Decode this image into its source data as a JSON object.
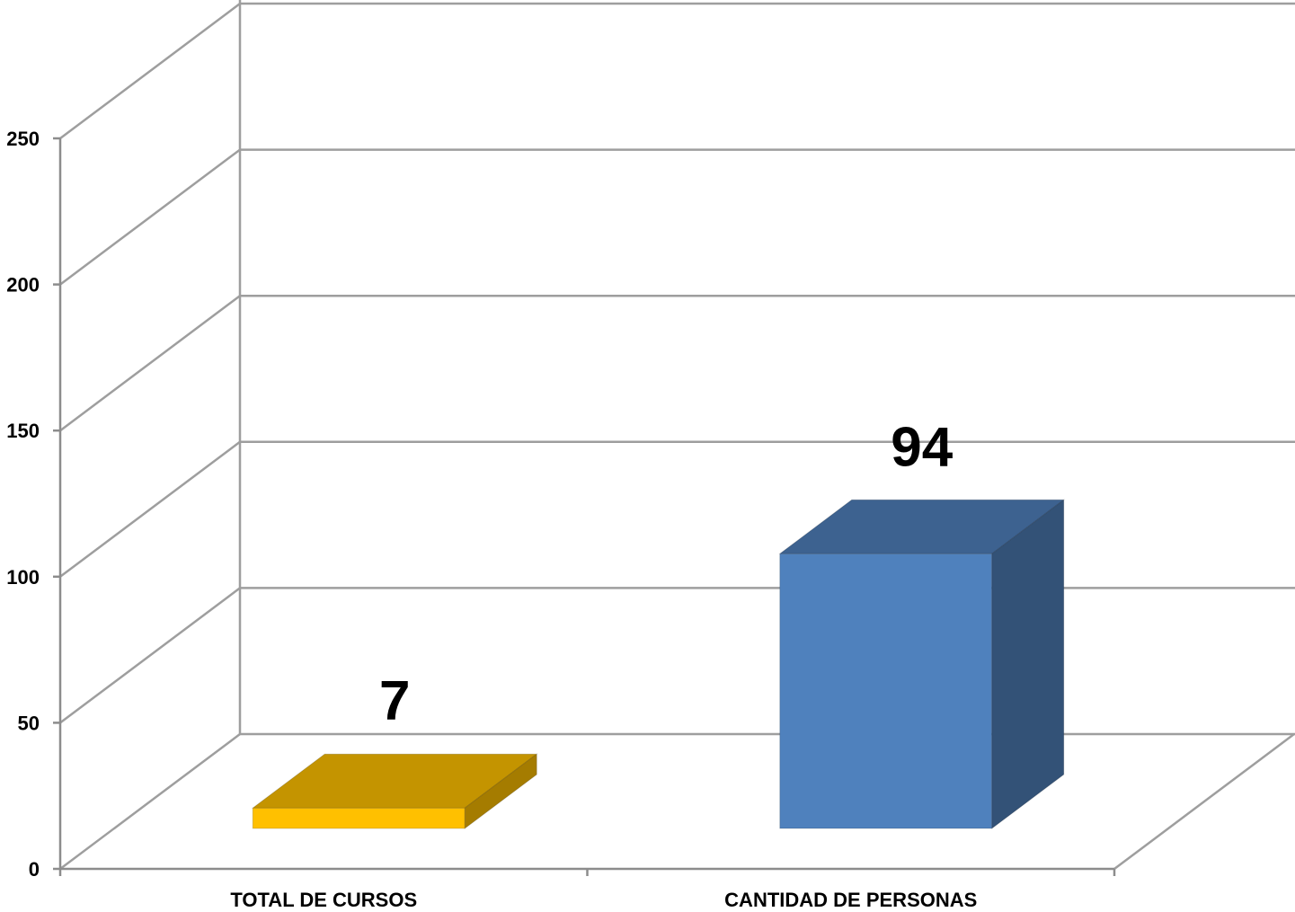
{
  "chart_data": {
    "type": "bar",
    "categories": [
      "TOTAL DE CURSOS",
      "CANTIDAD DE PERSONAS"
    ],
    "values": [
      7,
      94
    ],
    "data_labels": [
      "7",
      "94"
    ],
    "ylim": [
      0,
      250
    ],
    "yticks": [
      "0",
      "50",
      "100",
      "150",
      "200",
      "250"
    ],
    "title": "",
    "xlabel": "",
    "ylabel": "",
    "grid": true,
    "legend": "none",
    "three_d": true,
    "colors": {
      "bars": [
        "#FFC000",
        "#4F81BD"
      ],
      "tops": [
        "#C49400",
        "#3D6290"
      ],
      "sides": [
        "#A57C00",
        "#335277"
      ],
      "grid": "#9E9E9E"
    }
  }
}
